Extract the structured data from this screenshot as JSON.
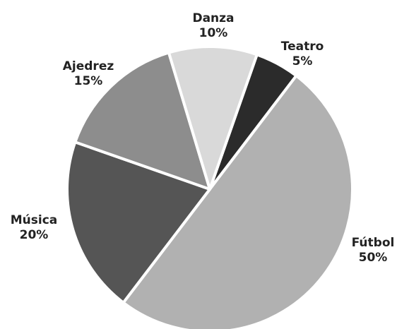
{
  "chart_data": {
    "type": "pie",
    "categories": [
      "Teatro",
      "Fútbol",
      "Música",
      "Ajedrez",
      "Danza"
    ],
    "values": [
      5,
      50,
      20,
      15,
      10
    ],
    "value_labels": [
      "5%",
      "50%",
      "20%",
      "15%",
      "10%"
    ],
    "colors": [
      "#2b2b2b",
      "#b1b1b1",
      "#555555",
      "#8d8d8d",
      "#d9d9d9"
    ],
    "start_angle": 19.3
  }
}
